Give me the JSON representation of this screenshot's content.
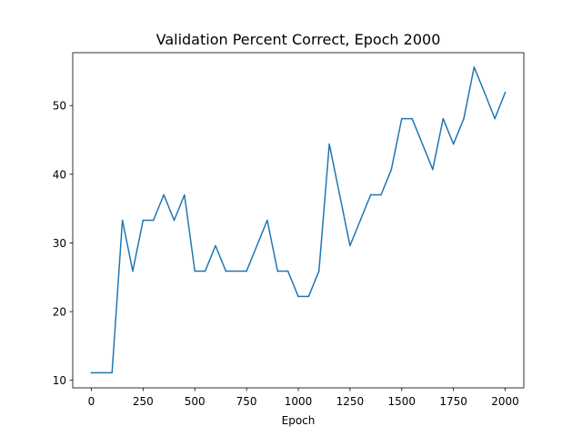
{
  "chart_data": {
    "type": "line",
    "title": "Validation Percent Correct, Epoch 2000",
    "xlabel": "Epoch",
    "ylabel": "",
    "xlim": [
      -90,
      2090
    ],
    "ylim": [
      8.9,
      57.7
    ],
    "grid": false,
    "legend": "none",
    "xticks": [
      0,
      250,
      500,
      750,
      1000,
      1250,
      1500,
      1750,
      2000
    ],
    "xtick_labels": [
      "0",
      "250",
      "500",
      "750",
      "1000",
      "1250",
      "1500",
      "1750",
      "2000"
    ],
    "yticks": [
      10,
      20,
      30,
      40,
      50
    ],
    "ytick_labels": [
      "10",
      "20",
      "30",
      "40",
      "50"
    ],
    "series": [
      {
        "color": "#1f77b4",
        "x": [
          0,
          50,
          100,
          150,
          200,
          250,
          300,
          350,
          400,
          450,
          500,
          550,
          600,
          650,
          700,
          750,
          800,
          850,
          900,
          950,
          1000,
          1050,
          1100,
          1150,
          1200,
          1250,
          1300,
          1350,
          1400,
          1450,
          1500,
          1550,
          1600,
          1650,
          1700,
          1750,
          1800,
          1850,
          1900,
          1950,
          2000
        ],
        "values": [
          11.1,
          11.1,
          11.1,
          33.3,
          25.9,
          33.3,
          33.3,
          37.0,
          33.3,
          37.0,
          25.9,
          25.9,
          29.6,
          25.9,
          25.9,
          25.9,
          29.6,
          33.3,
          25.9,
          25.9,
          22.2,
          22.2,
          25.9,
          44.4,
          37.0,
          29.6,
          33.3,
          37.0,
          37.0,
          40.7,
          48.1,
          48.1,
          44.4,
          40.7,
          48.1,
          44.4,
          48.1,
          55.6,
          51.9,
          48.1,
          51.9
        ]
      }
    ]
  }
}
